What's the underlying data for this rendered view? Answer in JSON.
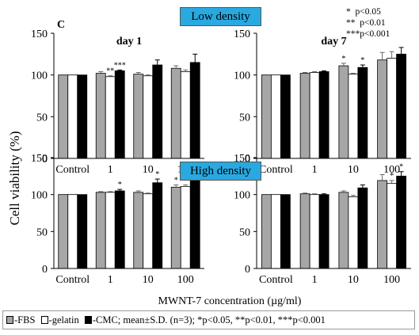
{
  "panel_letter": "C",
  "banners": {
    "low": "Low density",
    "high": "High density"
  },
  "significance_key": [
    "*  p<0.05",
    "**  p<0.01",
    "***p<0.001"
  ],
  "ylabel": "Cell viability (%)",
  "xlabel": "MWNT-7 concentration (µg/ml)",
  "footer": {
    "fbs": "-FBS",
    "gelatin": "-gelatin",
    "cmc": "-CMC; mean±S.D. (n=3); *p<0.05, **p<0.01, ***p<0.001"
  },
  "colors": {
    "fbs": "#a6a6a6",
    "gelatin": "#ffffff",
    "cmc": "#000000",
    "banner": "#29a9e0"
  },
  "chart_data": [
    {
      "type": "bar",
      "title": "day 1",
      "density": "Low density",
      "categories": [
        "Control",
        "1",
        "10",
        "100"
      ],
      "ylim": [
        0,
        150
      ],
      "yticks": [
        0,
        50,
        100,
        150
      ],
      "series": [
        {
          "values": [
            100,
            102,
            101,
            108
          ],
          "errors": [
            0,
            2,
            2,
            3
          ],
          "stars": [
            "",
            "",
            "",
            ""
          ]
        },
        {
          "values": [
            100,
            98,
            99,
            104
          ],
          "errors": [
            0,
            1,
            1,
            2
          ],
          "stars": [
            "",
            "**",
            "",
            ""
          ]
        },
        {
          "values": [
            100,
            105,
            112,
            115
          ],
          "errors": [
            0,
            1,
            6,
            10
          ],
          "stars": [
            "",
            "***",
            "",
            ""
          ]
        }
      ]
    },
    {
      "type": "bar",
      "title": "day 7",
      "density": "Low density",
      "categories": [
        "Control",
        "1",
        "10",
        "100"
      ],
      "ylim": [
        0,
        150
      ],
      "yticks": [
        0,
        50,
        100,
        150
      ],
      "series": [
        {
          "values": [
            100,
            102,
            111,
            118
          ],
          "errors": [
            0,
            1,
            3,
            9
          ],
          "stars": [
            "",
            "",
            "*",
            ""
          ]
        },
        {
          "values": [
            100,
            103,
            101,
            120
          ],
          "errors": [
            0,
            1,
            1,
            8
          ],
          "stars": [
            "",
            "",
            "",
            ""
          ]
        },
        {
          "values": [
            100,
            104,
            109,
            125
          ],
          "errors": [
            0,
            1,
            3,
            8
          ],
          "stars": [
            "",
            "",
            "*",
            ""
          ]
        }
      ]
    },
    {
      "type": "bar",
      "title": "",
      "density": "High density",
      "categories": [
        "Control",
        "1",
        "10",
        "100"
      ],
      "ylim": [
        0,
        150
      ],
      "yticks": [
        0,
        50,
        100,
        150
      ],
      "series": [
        {
          "values": [
            100,
            103,
            103,
            110
          ],
          "errors": [
            0,
            1,
            2,
            3
          ],
          "stars": [
            "",
            "",
            "",
            "*"
          ]
        },
        {
          "values": [
            100,
            103,
            101,
            111
          ],
          "errors": [
            0,
            1,
            1,
            2
          ],
          "stars": [
            "",
            "",
            "",
            "**"
          ]
        },
        {
          "values": [
            100,
            105,
            116,
            122
          ],
          "errors": [
            0,
            2,
            5,
            9
          ],
          "stars": [
            "",
            "*",
            "*",
            ""
          ]
        }
      ]
    },
    {
      "type": "bar",
      "title": "",
      "density": "High density",
      "categories": [
        "Control",
        "1",
        "10",
        "100"
      ],
      "ylim": [
        0,
        150
      ],
      "yticks": [
        0,
        50,
        100,
        150
      ],
      "series": [
        {
          "values": [
            100,
            101,
            103,
            119
          ],
          "errors": [
            0,
            1,
            2,
            8
          ],
          "stars": [
            "",
            "",
            "",
            ""
          ]
        },
        {
          "values": [
            100,
            100,
            97,
            115
          ],
          "errors": [
            0,
            1,
            2,
            4
          ],
          "stars": [
            "",
            "",
            "",
            "*"
          ]
        },
        {
          "values": [
            100,
            100,
            109,
            125
          ],
          "errors": [
            0,
            1,
            4,
            6
          ],
          "stars": [
            "",
            "",
            "",
            "*"
          ]
        }
      ]
    }
  ]
}
